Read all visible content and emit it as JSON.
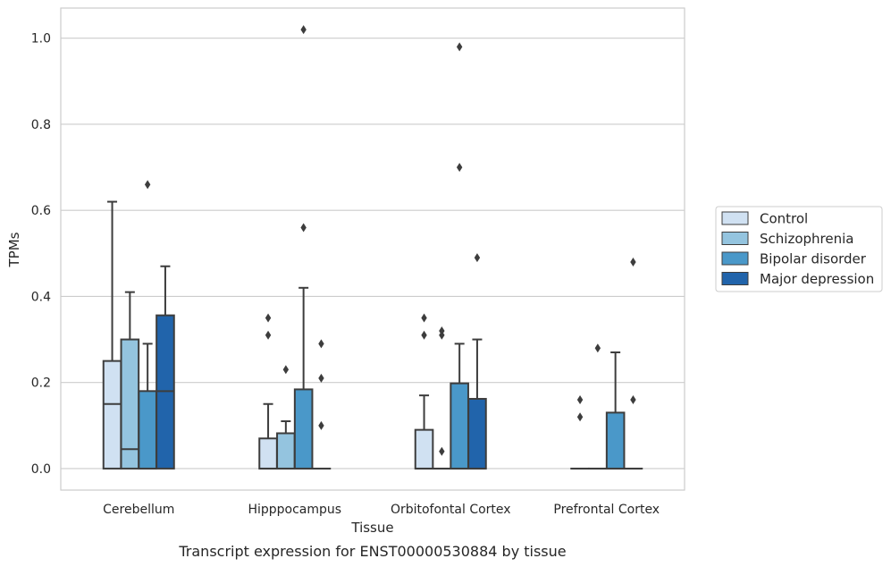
{
  "caption": "Transcript expression for ENST00000530884 by tissue",
  "chart_data": {
    "type": "box",
    "xlabel": "Tissue",
    "ylabel": "TPMs",
    "ylim": [
      -0.05,
      1.07
    ],
    "yticks": [
      0.0,
      0.2,
      0.4,
      0.6,
      0.8,
      1.0
    ],
    "ytick_labels": [
      "0.0",
      "0.2",
      "0.4",
      "0.6",
      "0.8",
      "1.0"
    ],
    "grid": true,
    "legend_position": "right",
    "categories": [
      "Cerebellum",
      "Hipppocampus",
      "Orbitofontal Cortex",
      "Prefrontal Cortex"
    ],
    "series": [
      {
        "name": "Control",
        "color": "#d0e1f2",
        "boxes": [
          {
            "q1": 0.0,
            "median": 0.15,
            "q3": 0.25,
            "whisker_low": 0.0,
            "whisker_high": 0.62,
            "fliers": []
          },
          {
            "q1": 0.0,
            "median": 0.0,
            "q3": 0.07,
            "whisker_low": 0.0,
            "whisker_high": 0.15,
            "fliers": [
              0.31,
              0.35
            ]
          },
          {
            "q1": 0.0,
            "median": 0.0,
            "q3": 0.09,
            "whisker_low": 0.0,
            "whisker_high": 0.17,
            "fliers": [
              0.31,
              0.35
            ]
          },
          {
            "q1": 0.0,
            "median": 0.0,
            "q3": 0.0,
            "whisker_low": 0.0,
            "whisker_high": 0.0,
            "fliers": [
              0.12,
              0.16
            ]
          }
        ]
      },
      {
        "name": "Schizophrenia",
        "color": "#94c4df",
        "boxes": [
          {
            "q1": 0.0,
            "median": 0.045,
            "q3": 0.3,
            "whisker_low": 0.0,
            "whisker_high": 0.41,
            "fliers": []
          },
          {
            "q1": 0.0,
            "median": 0.0,
            "q3": 0.082,
            "whisker_low": 0.0,
            "whisker_high": 0.11,
            "fliers": [
              0.23
            ]
          },
          {
            "q1": 0.0,
            "median": 0.0,
            "q3": 0.0,
            "whisker_low": 0.0,
            "whisker_high": 0.0,
            "fliers": [
              0.04,
              0.31,
              0.32
            ]
          },
          {
            "q1": 0.0,
            "median": 0.0,
            "q3": 0.0,
            "whisker_low": 0.0,
            "whisker_high": 0.0,
            "fliers": [
              0.28
            ]
          }
        ]
      },
      {
        "name": "Bipolar disorder",
        "color": "#4a98c9",
        "boxes": [
          {
            "q1": 0.0,
            "median": 0.0,
            "q3": 0.18,
            "whisker_low": 0.0,
            "whisker_high": 0.29,
            "fliers": [
              0.66
            ]
          },
          {
            "q1": 0.0,
            "median": 0.0,
            "q3": 0.184,
            "whisker_low": 0.0,
            "whisker_high": 0.42,
            "fliers": [
              0.56,
              1.02
            ]
          },
          {
            "q1": 0.0,
            "median": 0.0,
            "q3": 0.198,
            "whisker_low": 0.0,
            "whisker_high": 0.29,
            "fliers": [
              0.7,
              0.98
            ]
          },
          {
            "q1": 0.0,
            "median": 0.0,
            "q3": 0.13,
            "whisker_low": 0.0,
            "whisker_high": 0.27,
            "fliers": []
          }
        ]
      },
      {
        "name": "Major depression",
        "color": "#2164ab",
        "boxes": [
          {
            "q1": 0.0,
            "median": 0.18,
            "q3": 0.356,
            "whisker_low": 0.0,
            "whisker_high": 0.47,
            "fliers": []
          },
          {
            "q1": 0.0,
            "median": 0.0,
            "q3": 0.0,
            "whisker_low": 0.0,
            "whisker_high": 0.0,
            "fliers": [
              0.1,
              0.21,
              0.29
            ]
          },
          {
            "q1": 0.0,
            "median": 0.0,
            "q3": 0.162,
            "whisker_low": 0.0,
            "whisker_high": 0.3,
            "fliers": [
              0.49
            ]
          },
          {
            "q1": 0.0,
            "median": 0.0,
            "q3": 0.0,
            "whisker_low": 0.0,
            "whisker_high": 0.0,
            "fliers": [
              0.16,
              0.48
            ]
          }
        ]
      }
    ]
  }
}
